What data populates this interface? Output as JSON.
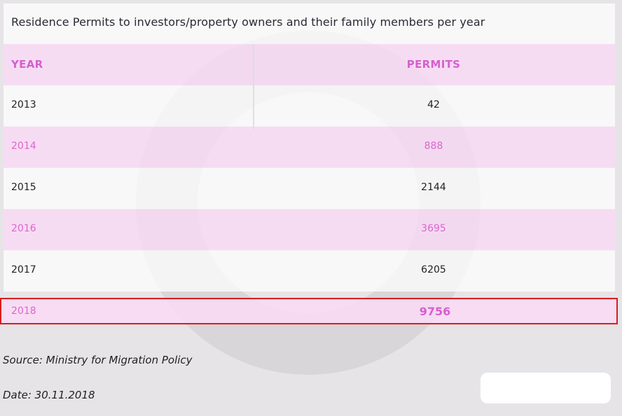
{
  "chart_data": {
    "type": "table",
    "title": "Residence Permits to investors/property owners and their family members per year",
    "columns": [
      "YEAR",
      "PERMITS"
    ],
    "rows": [
      {
        "year": "2013",
        "permits": "42"
      },
      {
        "year": "2014",
        "permits": "888"
      },
      {
        "year": "2015",
        "permits": "2144"
      },
      {
        "year": "2016",
        "permits": "3695"
      },
      {
        "year": "2017",
        "permits": "6205"
      },
      {
        "year": "2018",
        "permits": "9756"
      }
    ],
    "highlighted_row": "2018"
  },
  "footer": {
    "source": "Source: Ministry for Migration Policy",
    "date": "Date: 30.11.2018"
  },
  "colors": {
    "accent": "#d65fcf",
    "pink_row": "#fadaf6",
    "highlight_border": "#d81e1e",
    "background": "#e6e4e7"
  }
}
